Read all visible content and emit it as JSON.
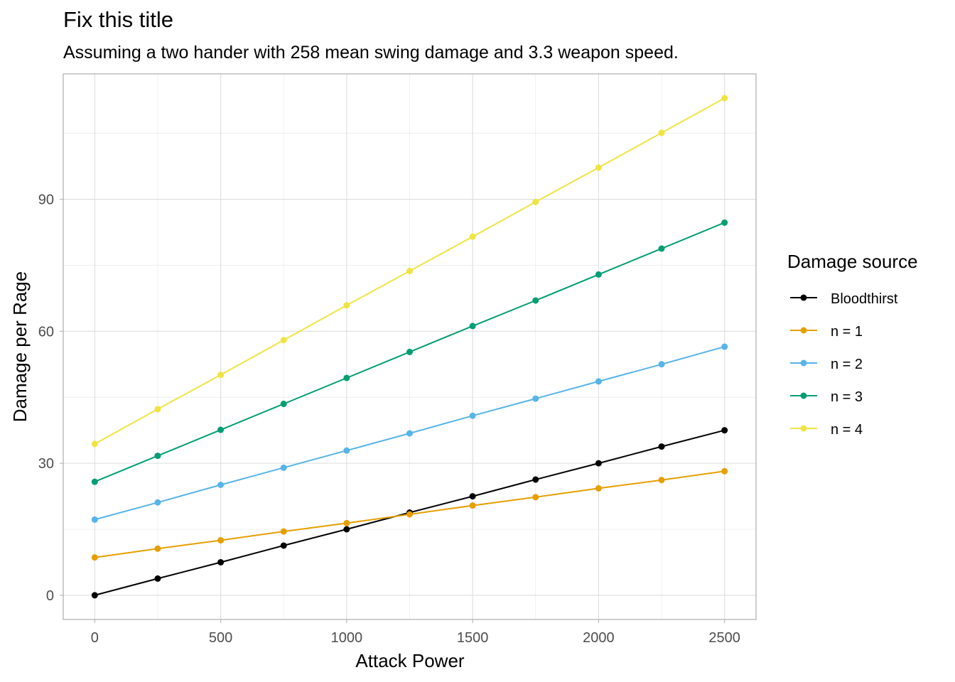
{
  "chart_data": {
    "type": "line",
    "title": "Fix this title",
    "subtitle": "Assuming a two hander with 258 mean swing damage and 3.3 weapon speed.",
    "xlabel": "Attack Power",
    "ylabel": "Damage per Rage",
    "x": [
      0,
      250,
      500,
      750,
      1000,
      1250,
      1500,
      1750,
      2000,
      2250,
      2500
    ],
    "xticks": [
      0,
      500,
      1000,
      1500,
      2000,
      2500
    ],
    "yticks": [
      0,
      30,
      60,
      90
    ],
    "xlim": [
      -125,
      2625
    ],
    "ylim": [
      -5.5,
      118.5
    ],
    "grid": true,
    "legend": {
      "title": "Damage source",
      "placement": "right"
    },
    "series": [
      {
        "name": "Bloodthirst",
        "color": "#000000",
        "values": [
          0.0,
          3.8,
          7.5,
          11.3,
          15.0,
          18.8,
          22.5,
          26.3,
          30.0,
          33.8,
          37.5
        ]
      },
      {
        "name": "n = 1",
        "color": "#E69F00",
        "values": [
          8.6,
          10.6,
          12.5,
          14.5,
          16.4,
          18.4,
          20.4,
          22.3,
          24.3,
          26.2,
          28.2
        ]
      },
      {
        "name": "n = 2",
        "color": "#56B4E9",
        "values": [
          17.2,
          21.1,
          25.1,
          29.0,
          32.9,
          36.8,
          40.8,
          44.7,
          48.6,
          52.5,
          56.5
        ]
      },
      {
        "name": "n = 3",
        "color": "#009E73",
        "values": [
          25.8,
          31.7,
          37.6,
          43.5,
          49.4,
          55.3,
          61.2,
          67.0,
          72.9,
          78.8,
          84.7
        ]
      },
      {
        "name": "n = 4",
        "color": "#F0E442",
        "values": [
          34.4,
          42.3,
          50.1,
          58.0,
          65.9,
          73.7,
          81.5,
          89.4,
          97.2,
          105.1,
          113.0
        ]
      }
    ]
  }
}
